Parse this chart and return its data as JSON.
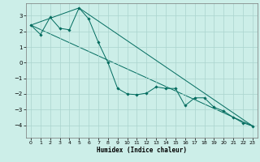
{
  "background_color": "#cceee8",
  "grid_color": "#aad4ce",
  "line_color": "#006b5e",
  "marker_color": "#006b5e",
  "xlabel": "Humidex (Indice chaleur)",
  "xlim": [
    -0.5,
    23.5
  ],
  "ylim": [
    -4.8,
    3.8
  ],
  "yticks": [
    -4,
    -3,
    -2,
    -1,
    0,
    1,
    2,
    3
  ],
  "xticks": [
    0,
    1,
    2,
    3,
    4,
    5,
    6,
    7,
    8,
    9,
    10,
    11,
    12,
    13,
    14,
    15,
    16,
    17,
    18,
    19,
    20,
    21,
    22,
    23
  ],
  "line1_x": [
    0,
    1,
    2,
    3,
    4,
    5,
    6,
    7,
    8,
    9,
    10,
    11,
    12,
    13,
    14,
    15,
    16,
    17,
    18,
    19,
    20,
    21,
    22,
    23
  ],
  "line1_y": [
    2.4,
    1.8,
    2.9,
    2.2,
    2.1,
    3.5,
    2.8,
    1.3,
    0.0,
    -1.65,
    -2.0,
    -2.05,
    -1.95,
    -1.55,
    -1.65,
    -1.65,
    -2.75,
    -2.25,
    -2.25,
    -2.85,
    -3.1,
    -3.5,
    -3.85,
    -4.05
  ],
  "line2_x": [
    0,
    5,
    23
  ],
  "line2_y": [
    2.4,
    3.5,
    -4.05
  ],
  "line3_x": [
    0,
    23
  ],
  "line3_y": [
    2.4,
    -4.05
  ]
}
